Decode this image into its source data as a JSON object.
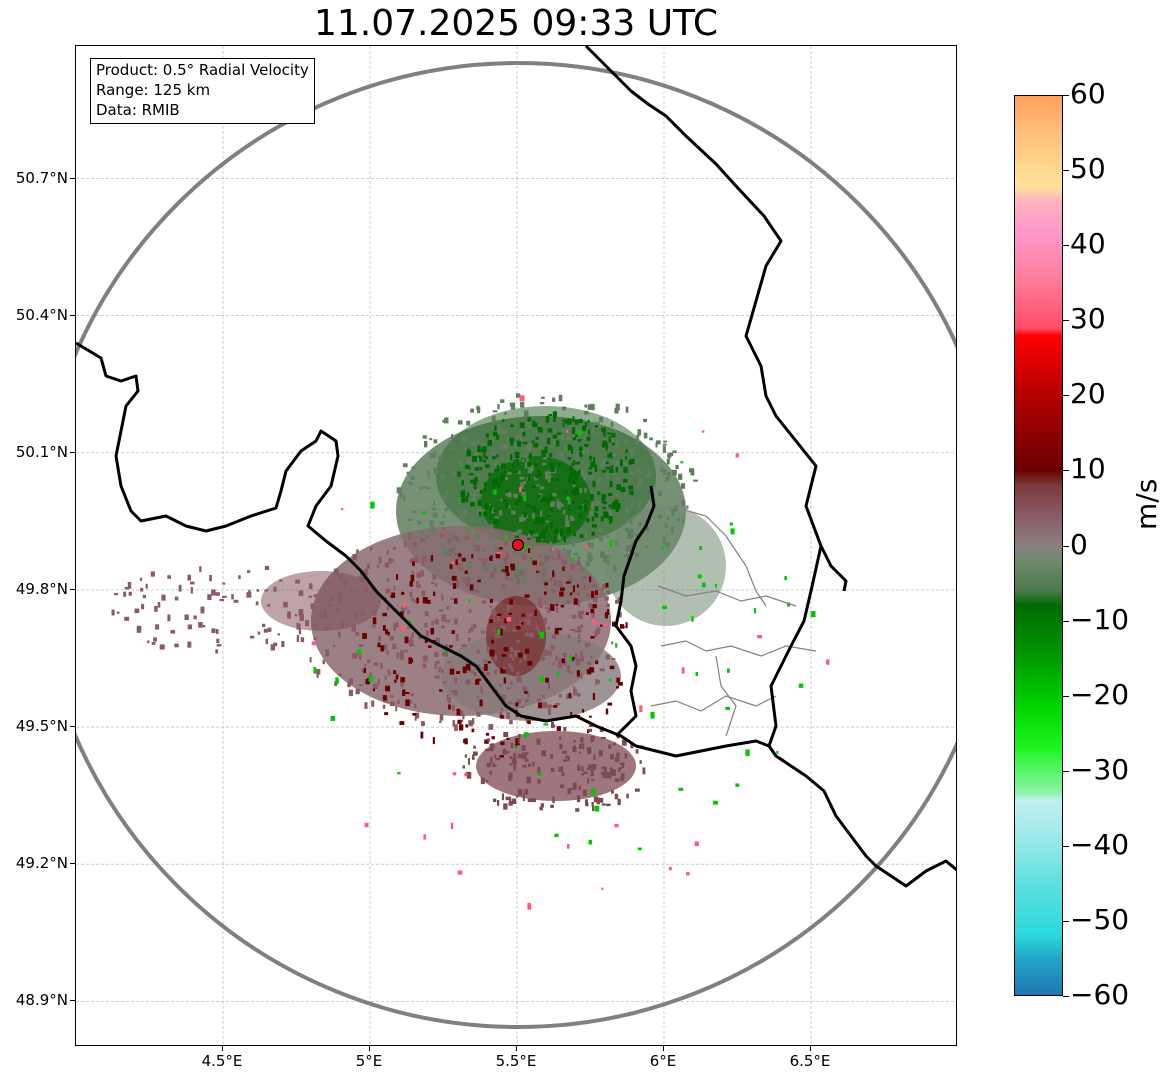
{
  "title": "11.07.2025 09:33 UTC",
  "info_box": {
    "product": "Product: 0.5° Radial Velocity",
    "range": "Range: 125 km",
    "data": "Data: RMIB"
  },
  "map": {
    "lon_range": [
      4.0,
      7.0
    ],
    "lat_range": [
      48.8,
      50.99
    ],
    "radar_site": {
      "lon": 5.505,
      "lat": 49.915
    },
    "range_ring_km": 125,
    "x_ticks": [
      {
        "lon": 4.5,
        "label": "4.5°E"
      },
      {
        "lon": 5.0,
        "label": "5°E"
      },
      {
        "lon": 5.5,
        "label": "5.5°E"
      },
      {
        "lon": 6.0,
        "label": "6°E"
      },
      {
        "lon": 6.5,
        "label": "6.5°E"
      }
    ],
    "y_ticks": [
      {
        "lat": 48.9,
        "label": "48.9°N"
      },
      {
        "lat": 49.2,
        "label": "49.2°N"
      },
      {
        "lat": 49.5,
        "label": "49.5°N"
      },
      {
        "lat": 49.8,
        "label": "49.8°N"
      },
      {
        "lat": 50.1,
        "label": "50.1°N"
      },
      {
        "lat": 50.4,
        "label": "50.4°N"
      },
      {
        "lat": 50.7,
        "label": "50.7°N"
      }
    ],
    "grid": true,
    "colors": {
      "range_ring": "#808080",
      "border": "#000000",
      "admin_border": "#808080",
      "radar_marker": "#e8141b"
    }
  },
  "colorbar": {
    "label": "m/s",
    "min": -60,
    "max": 60,
    "ticks": [
      "60",
      "50",
      "40",
      "30",
      "20",
      "10",
      "0",
      "−10",
      "−20",
      "−30",
      "−40",
      "−50",
      "−60"
    ],
    "stops": [
      {
        "v": -60,
        "c": "#1f77b4"
      },
      {
        "v": -55,
        "c": "#22a7c7"
      },
      {
        "v": -52,
        "c": "#2bd8dc"
      },
      {
        "v": -45,
        "c": "#5fe0e0"
      },
      {
        "v": -38,
        "c": "#a7eaea"
      },
      {
        "v": -34,
        "c": "#bff0f0"
      },
      {
        "v": -33,
        "c": "#8ef5a5"
      },
      {
        "v": -30,
        "c": "#55f56a"
      },
      {
        "v": -27,
        "c": "#1ef51e"
      },
      {
        "v": -22,
        "c": "#00d800"
      },
      {
        "v": -15,
        "c": "#009a00"
      },
      {
        "v": -8,
        "c": "#006a00"
      },
      {
        "v": -6,
        "c": "#4b7a4b"
      },
      {
        "v": -2,
        "c": "#6f8a6f"
      },
      {
        "v": 0,
        "c": "#8a8080"
      },
      {
        "v": 4,
        "c": "#8a5a66"
      },
      {
        "v": 8,
        "c": "#7a3b3b"
      },
      {
        "v": 10,
        "c": "#6a0000"
      },
      {
        "v": 20,
        "c": "#b40000"
      },
      {
        "v": 28,
        "c": "#ff0000"
      },
      {
        "v": 29,
        "c": "#ff4d66"
      },
      {
        "v": 36,
        "c": "#ff7fa0"
      },
      {
        "v": 42,
        "c": "#ff99cc"
      },
      {
        "v": 46,
        "c": "#ffb5c0"
      },
      {
        "v": 48,
        "c": "#ffe39a"
      },
      {
        "v": 55,
        "c": "#ffc07a"
      },
      {
        "v": 60,
        "c": "#ffa05a"
      }
    ]
  }
}
